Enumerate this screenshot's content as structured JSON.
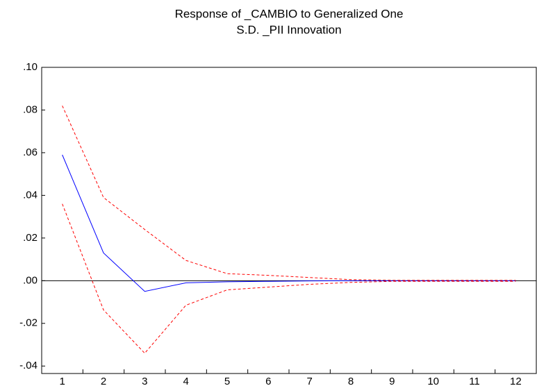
{
  "chart_data": {
    "type": "line",
    "title": [
      "Response of _CAMBIO to Generalized One",
      "S.D. _PII Innovation"
    ],
    "categories": [
      "1",
      "2",
      "3",
      "4",
      "5",
      "6",
      "7",
      "8",
      "9",
      "10",
      "11",
      "12"
    ],
    "series": [
      {
        "color": "#0000ff",
        "dash": false,
        "values": [
          0.059,
          0.013,
          -0.005,
          -0.001,
          -0.0005,
          -0.0003,
          -0.0001,
          0,
          0,
          0,
          0,
          0
        ]
      },
      {
        "color": "#ff0000",
        "dash": true,
        "values": [
          0.082,
          0.039,
          0.024,
          0.0095,
          0.0033,
          0.0025,
          0.0015,
          0.0005,
          0.0002,
          0.0002,
          0.0002,
          0.0002
        ]
      },
      {
        "color": "#ff0000",
        "dash": true,
        "values": [
          0.036,
          -0.0137,
          -0.034,
          -0.0115,
          -0.0043,
          -0.003,
          -0.0017,
          -0.0008,
          -0.0003,
          -0.0003,
          -0.0003,
          -0.0003
        ]
      }
    ],
    "ylim": [
      -0.0435,
      0.1
    ],
    "yticks": [
      {
        "value": -0.04,
        "label": "-.04"
      },
      {
        "value": -0.02,
        "label": "-.02"
      },
      {
        "value": 0,
        "label": ".00"
      },
      {
        "value": 0.02,
        "label": ".02"
      },
      {
        "value": 0.04,
        "label": ".04"
      },
      {
        "value": 0.06,
        "label": ".06"
      },
      {
        "value": 0.08,
        "label": ".08"
      },
      {
        "value": 0.1,
        "label": ".10"
      }
    ],
    "zero_line": true
  }
}
